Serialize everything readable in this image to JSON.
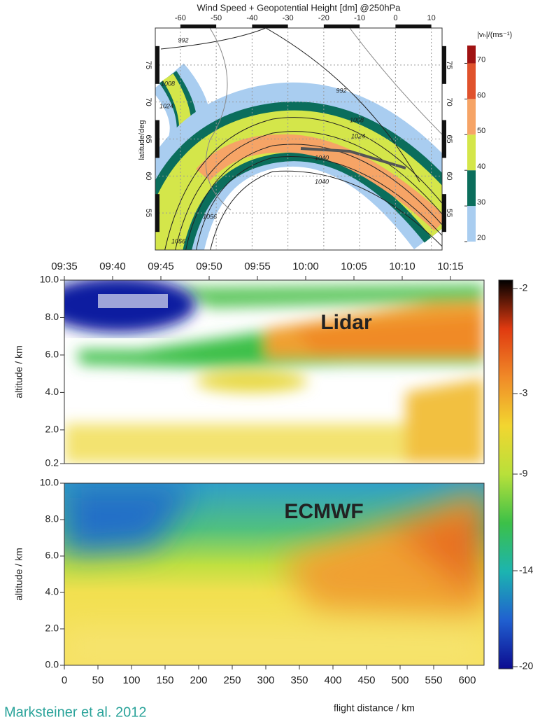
{
  "chart_data": [
    {
      "type": "map",
      "title": "Wind Speed + Geopotential Height [dm]  @250hPa",
      "y_label": "latitude/deg",
      "xlim": [
        -67,
        13
      ],
      "xticks": [
        -60,
        -50,
        -40,
        -30,
        -20,
        -10,
        0,
        10
      ],
      "ylim": [
        50,
        80
      ],
      "yticks": [
        55,
        60,
        65,
        70,
        75
      ],
      "contour_labels": [
        "992",
        "992",
        "1008",
        "1024",
        "1008",
        "1024",
        "1040",
        "1056",
        "1040",
        "1056"
      ],
      "colorbar": {
        "label": "|vₕ|/(ms⁻¹)",
        "lim": [
          20,
          75
        ],
        "ticks": [
          20,
          30,
          40,
          50,
          60,
          70
        ],
        "colors": [
          "#a9cdf0",
          "#0b6e5c",
          "#d4e64a",
          "#f6a466",
          "#e0522c",
          "#a01212"
        ]
      }
    },
    {
      "type": "heatmap",
      "label": "Lidar",
      "y_label": "altitude / km",
      "time_ticks": [
        "09:35",
        "09:40",
        "09:45",
        "09:50",
        "09:55",
        "10:00",
        "10:05",
        "10:10",
        "10:15"
      ],
      "ylim": [
        0.2,
        10
      ],
      "yticks": [
        {
          "value": 0.2,
          "label": "0.2"
        },
        {
          "value": 2,
          "label": "2.0"
        },
        {
          "value": 4,
          "label": "4.0"
        },
        {
          "value": 6,
          "label": "6.0"
        },
        {
          "value": 8,
          "label": "8.0"
        },
        {
          "value": 10,
          "label": "10.0"
        }
      ]
    },
    {
      "type": "heatmap",
      "label": "ECMWF",
      "y_label": "altitude / km",
      "x_label": "flight distance / km",
      "xlim": [
        0,
        625
      ],
      "xticks": [
        0,
        50,
        100,
        150,
        200,
        250,
        300,
        350,
        400,
        450,
        500,
        550,
        600
      ],
      "ylim": [
        0,
        10
      ],
      "yticks": [
        {
          "value": 0,
          "label": "0.0"
        },
        {
          "value": 2,
          "label": "2.0"
        },
        {
          "value": 4,
          "label": "4.0"
        },
        {
          "value": 6,
          "label": "6.0"
        },
        {
          "value": 8,
          "label": "8.0"
        },
        {
          "value": 10,
          "label": "10.0"
        }
      ]
    },
    {
      "type": "colorbar",
      "ticks": [
        -2,
        -3,
        -9,
        -14,
        -20
      ],
      "colors": [
        "#000000",
        "#e03a10",
        "#f08a28",
        "#f2d630",
        "#b8e03a",
        "#3cc048",
        "#1cb4b0",
        "#2060d0",
        "#0c0c90"
      ]
    }
  ],
  "source": "Marksteiner et al. 2012"
}
